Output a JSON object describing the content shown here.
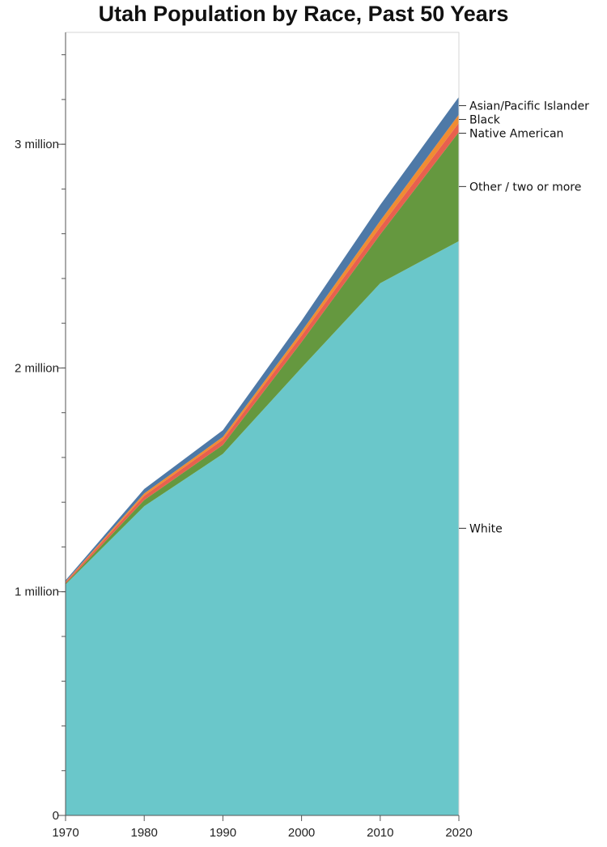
{
  "chart_data": {
    "type": "area",
    "stacked": true,
    "title": "Utah Population by Race, Past 50 Years",
    "xlabel": "",
    "ylabel": "",
    "x": [
      1970,
      1980,
      1990,
      2000,
      2010,
      2020
    ],
    "x_tick_labels": [
      "1970",
      "1980",
      "1990",
      "2000",
      "2010",
      "2020"
    ],
    "ylim": [
      0,
      3500000
    ],
    "y_ticks": [
      0,
      1000000,
      2000000,
      3000000
    ],
    "y_tick_labels": [
      "0",
      "1 million",
      "2 million",
      "3 million"
    ],
    "y_minor_tick_step": 200000,
    "grid": false,
    "legend": "direct labels at right edge",
    "series": [
      {
        "name": "White",
        "color": "#6ac7ca",
        "values": [
          1032000,
          1382000,
          1616000,
          2001000,
          2379000,
          2567000
        ]
      },
      {
        "name": "Other / two or more",
        "color": "#65983f",
        "values": [
          4000,
          28000,
          40000,
          115000,
          218000,
          488000
        ]
      },
      {
        "name": "Native American",
        "color": "#e8604e",
        "values": [
          7000,
          19000,
          24000,
          29000,
          33000,
          41000
        ]
      },
      {
        "name": "Black",
        "color": "#f08c32",
        "values": [
          2000,
          10000,
          12000,
          18000,
          28000,
          37000
        ]
      },
      {
        "name": "Asian/Pacific Islander",
        "color": "#4e79a7",
        "values": [
          6000,
          20000,
          30000,
          48000,
          71000,
          79000
        ]
      }
    ]
  }
}
